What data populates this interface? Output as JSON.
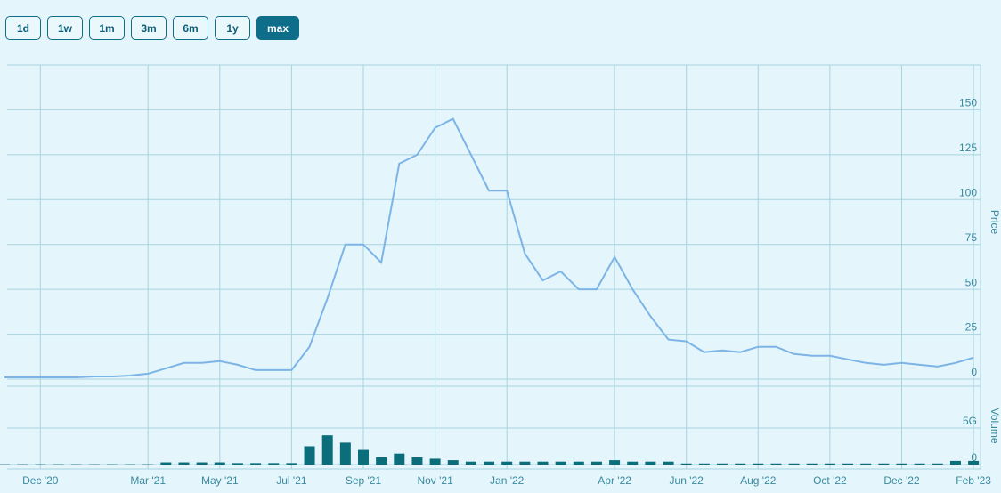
{
  "buttons": [
    "1d",
    "1w",
    "1m",
    "3m",
    "6m",
    "1y",
    "max"
  ],
  "active_button": "max",
  "chart_data": [
    {
      "type": "line",
      "y_label": "Price",
      "color": "#7db4e6",
      "categories": [
        null,
        null,
        "Dec '20",
        null,
        null,
        null,
        null,
        null,
        "Mar '21",
        null,
        null,
        null,
        "May '21",
        null,
        null,
        null,
        "Jul '21",
        null,
        null,
        null,
        "Sep '21",
        null,
        null,
        null,
        "Nov '21",
        null,
        null,
        null,
        "Jan '22",
        null,
        null,
        null,
        null,
        null,
        "Apr '22",
        null,
        null,
        null,
        "Jun '22",
        null,
        null,
        null,
        "Aug '22",
        null,
        null,
        null,
        "Oct '22",
        null,
        null,
        null,
        "Dec '22",
        null,
        null,
        null,
        "Feb '23"
      ],
      "values": [
        1,
        1,
        1,
        1,
        1,
        1.5,
        1.5,
        2,
        3,
        6,
        9,
        9,
        10,
        8,
        5,
        5,
        5,
        18,
        45,
        75,
        75,
        65,
        120,
        125,
        140,
        145,
        125,
        105,
        105,
        70,
        55,
        60,
        50,
        50,
        68,
        50,
        35,
        22,
        21,
        15,
        16,
        15,
        18,
        18,
        14,
        13,
        13,
        11,
        9,
        8,
        9,
        8,
        7,
        9,
        12
      ],
      "ylim": [
        0,
        175
      ],
      "yticks": [
        0,
        25,
        50,
        75,
        100,
        125,
        150
      ],
      "grid": true
    },
    {
      "type": "bar",
      "y_label": "Volume",
      "color": "#0b6e7a",
      "values": [
        0.05,
        0.05,
        0.05,
        0.05,
        0.05,
        0.05,
        0.05,
        0.05,
        0.05,
        0.3,
        0.3,
        0.3,
        0.3,
        0.2,
        0.2,
        0.2,
        0.2,
        2.5,
        4,
        3,
        2,
        1,
        1.5,
        1,
        0.8,
        0.6,
        0.4,
        0.4,
        0.4,
        0.4,
        0.4,
        0.4,
        0.4,
        0.4,
        0.6,
        0.4,
        0.4,
        0.4,
        0.15,
        0.15,
        0.15,
        0.15,
        0.15,
        0.15,
        0.15,
        0.15,
        0.15,
        0.15,
        0.15,
        0.15,
        0.15,
        0.15,
        0.15,
        0.5,
        0.5
      ],
      "ylim": [
        0,
        10.6
      ],
      "yticks": [
        0,
        {
          "value": 5,
          "label": "5G"
        }
      ],
      "grid": true
    }
  ]
}
